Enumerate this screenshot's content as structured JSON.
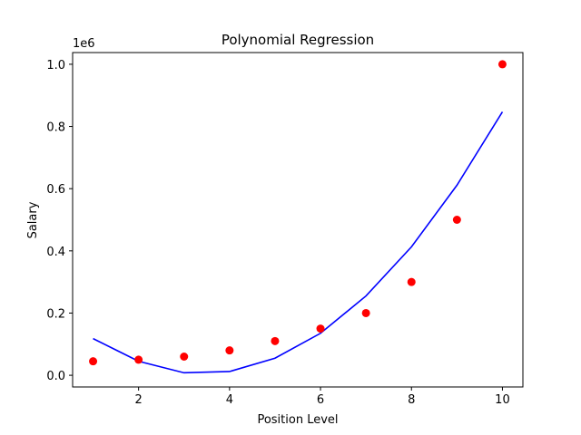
{
  "chart_data": {
    "type": "scatter",
    "title": "Polynomial Regression",
    "xlabel": "Position Level",
    "ylabel": "Salary",
    "y_offset_text": "1e6",
    "xlim": [
      0.55,
      10.45
    ],
    "ylim": [
      -0.0376,
      1.0376
    ],
    "x_ticks": [
      2,
      4,
      6,
      8,
      10
    ],
    "x_tick_labels": [
      "2",
      "4",
      "6",
      "8",
      "10"
    ],
    "y_ticks": [
      0.0,
      0.2,
      0.4,
      0.6,
      0.8,
      1.0
    ],
    "y_tick_labels": [
      "0.0",
      "0.2",
      "0.4",
      "0.6",
      "0.8",
      "1.0"
    ],
    "grid": false,
    "series": [
      {
        "kind": "scatter",
        "color": "#ff0000",
        "x": [
          1,
          2,
          3,
          4,
          5,
          6,
          7,
          8,
          9,
          10
        ],
        "y": [
          0.045,
          0.05,
          0.06,
          0.08,
          0.11,
          0.15,
          0.2,
          0.3,
          0.5,
          1.0
        ]
      },
      {
        "kind": "line",
        "color": "#0000ff",
        "x": [
          1,
          2,
          3,
          4,
          5,
          6,
          7,
          8,
          9,
          10
        ],
        "y": [
          0.118,
          0.045,
          0.008,
          0.012,
          0.055,
          0.135,
          0.255,
          0.413,
          0.611,
          0.847
        ]
      }
    ]
  }
}
